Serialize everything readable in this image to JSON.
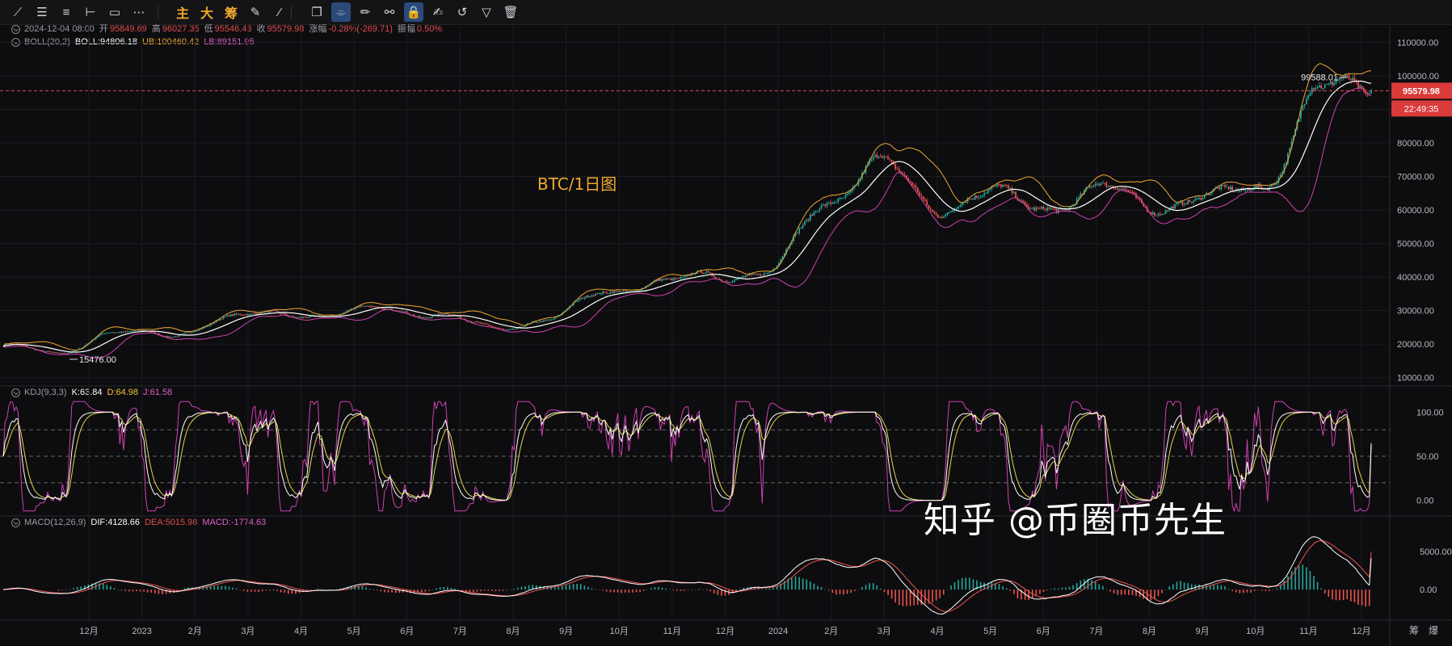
{
  "toolbar": {
    "items": [
      {
        "icon": "trend-line-icon",
        "glyph": "⟋"
      },
      {
        "icon": "horizontal-rays-icon",
        "glyph": "☰"
      },
      {
        "icon": "parallel-lines-icon",
        "glyph": "≡"
      },
      {
        "icon": "horizontal-line-icon",
        "glyph": "⊢"
      },
      {
        "icon": "rectangle-icon",
        "glyph": "▭"
      },
      {
        "icon": "more-icon",
        "glyph": "⋯"
      },
      {
        "icon": "main-chart-toggle",
        "label": "主"
      },
      {
        "icon": "large-toggle",
        "label": "大"
      },
      {
        "icon": "chip-toggle",
        "label": "筹"
      },
      {
        "icon": "ruler-edit-icon",
        "glyph": "✎"
      },
      {
        "icon": "brush-icon",
        "glyph": "⁄"
      },
      {
        "icon": "copy-icon",
        "glyph": "❐"
      },
      {
        "icon": "measure-icon",
        "glyph": "⌯"
      },
      {
        "icon": "pencil-icon",
        "glyph": "✏"
      },
      {
        "icon": "visibility-icon",
        "glyph": "⚯"
      },
      {
        "icon": "lock-icon",
        "glyph": "🔒"
      },
      {
        "icon": "note-edit-icon",
        "glyph": "✍"
      },
      {
        "icon": "magnet-icon",
        "glyph": "↺"
      },
      {
        "icon": "filter-icon",
        "glyph": "▽"
      },
      {
        "icon": "trash-icon",
        "glyph": "🗑"
      }
    ]
  },
  "ohlc": {
    "date": "2024-12-04 08:00",
    "open_label": "开",
    "open": "95849.69",
    "high_label": "高",
    "high": "96027.35",
    "low_label": "低",
    "low": "95546.43",
    "close_label": "收",
    "close": "95579.98",
    "change_label": "涨幅",
    "change": "-0.28%(-269.71)",
    "amp_label": "振幅",
    "amp": "0.50%"
  },
  "boll": {
    "name": "BOLL(20,2)",
    "mid": "BOLL:94806.18",
    "ub": "UB:100460.42",
    "lb": "LB:89151.95"
  },
  "kdj": {
    "name": "KDJ(9,3,3)",
    "k": "K:63.84",
    "d": "D:64.98",
    "j": "J:61.58"
  },
  "macd": {
    "name": "MACD(12,26,9)",
    "dif": "DIF:4128.66",
    "dea": "DEA:5015.98",
    "macd": "MACD:-1774.63"
  },
  "annotation": "BTC/1日图",
  "price_tags": {
    "current": "95579.98",
    "countdown": "22:49:35",
    "high_mark": "99588.01",
    "low_mark": "15476.00"
  },
  "watermark": "知乎 @币圈币先生",
  "corner_labels": [
    "筹",
    "爆"
  ],
  "colors": {
    "up": "#26a69a",
    "down": "#ef5350",
    "mid": "#ffffff",
    "ub": "#f0a830",
    "lb": "#d040b0",
    "k": "#ffffff",
    "d": "#e6d44a",
    "j": "#d040b0",
    "dif": "#ffffff",
    "dea": "#ef5350"
  },
  "chart_data": {
    "type": "line",
    "x_ticks": [
      "12月",
      "2023",
      "2月",
      "3月",
      "4月",
      "5月",
      "6月",
      "7月",
      "8月",
      "9月",
      "10月",
      "11月",
      "12月",
      "2024",
      "2月",
      "3月",
      "4月",
      "5月",
      "6月",
      "7月",
      "8月",
      "9月",
      "10月",
      "11月",
      "12月"
    ],
    "price_axis": {
      "ticks": [
        "110000.00",
        "100000.00",
        "90000.00",
        "80000.00",
        "70000.00",
        "60000.00",
        "50000.00",
        "40000.00",
        "30000.00",
        "20000.00",
        "10000.00"
      ],
      "ylim": [
        8000,
        113000
      ]
    },
    "kdj_axis": {
      "ticks": [
        "100.00",
        "50.00",
        "0.00"
      ],
      "ylim": [
        -15,
        115
      ],
      "ref_lines": [
        20,
        50,
        80
      ]
    },
    "macd_axis": {
      "ticks": [
        "5000.00",
        "0.00"
      ],
      "ylim": [
        -3700,
        8000
      ]
    },
    "price_monthly_close": {
      "months": [
        "2022-11",
        "2022-12",
        "2023-01",
        "2023-02",
        "2023-03",
        "2023-04",
        "2023-05",
        "2023-06",
        "2023-07",
        "2023-08",
        "2023-09",
        "2023-10",
        "2023-11",
        "2023-12",
        "2024-01",
        "2024-02",
        "2024-03",
        "2024-04",
        "2024-05",
        "2024-06",
        "2024-07",
        "2024-08",
        "2024-09",
        "2024-10",
        "2024-11",
        "2024-12"
      ],
      "close": [
        19500,
        16500,
        23100,
        23150,
        28500,
        29250,
        27200,
        30500,
        29200,
        25900,
        27000,
        34500,
        37700,
        42300,
        42600,
        61100,
        71300,
        60600,
        67500,
        62700,
        64600,
        59000,
        63300,
        70200,
        96500,
        95580
      ]
    },
    "last_price": 95579.98,
    "high_mark": 99588.01,
    "low_mark": 15476.0,
    "boll_last": {
      "mid": 94806.18,
      "ub": 100460.42,
      "lb": 89151.95
    },
    "kdj_last": {
      "k": 63.84,
      "d": 64.98,
      "j": 61.58
    },
    "macd_last": {
      "dif": 4128.66,
      "dea": 5015.98,
      "macd": -1774.63
    },
    "series": [
      {
        "name": "BOLL",
        "values": [
          94806.18
        ]
      },
      {
        "name": "UB",
        "values": [
          100460.42
        ]
      },
      {
        "name": "LB",
        "values": [
          89151.95
        ]
      }
    ]
  }
}
